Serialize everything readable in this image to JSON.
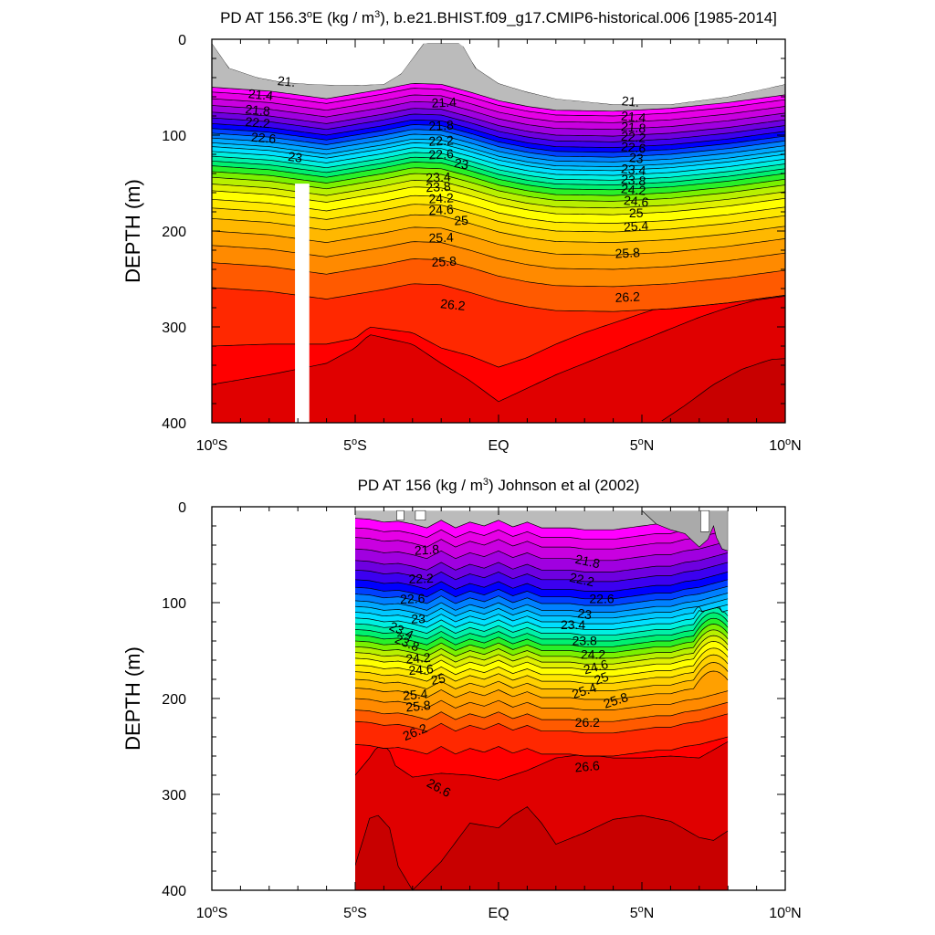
{
  "figure": "Potential density cross-sections along ~156E",
  "chart_data": [
    {
      "type": "heatmap",
      "title_prefix": "PD AT 156.3",
      "title_deg": "o",
      "title_mid": "E (kg / m",
      "title_sup": "3",
      "title_suffix": "), b.e21.BHIST.f09_g17.CMIP6-historical.006 [1985-2014]",
      "xlabel": "",
      "ylabel": "DEPTH (m)",
      "xlim": [
        -10,
        10
      ],
      "ylim": [
        400,
        0
      ],
      "x_ticks": [
        -10,
        -5,
        0,
        5,
        10
      ],
      "x_tick_labels": [
        {
          "num": "10",
          "sup": "o",
          "hemi": "S"
        },
        {
          "num": "5",
          "sup": "o",
          "hemi": "S"
        },
        {
          "num": "EQ",
          "sup": "",
          "hemi": ""
        },
        {
          "num": "5",
          "sup": "o",
          "hemi": "N"
        },
        {
          "num": "10",
          "sup": "o",
          "hemi": "N"
        }
      ],
      "y_ticks": [
        0,
        100,
        200,
        300,
        400
      ],
      "y_tick_labels": [
        "0",
        "100",
        "200",
        "300",
        "400"
      ],
      "x_domain": [
        -10,
        10
      ],
      "missing_columns": [
        [
          -7.1,
          -6.6
        ]
      ],
      "base": {
        "x": [
          -10,
          -8,
          -6,
          -4,
          -3,
          -2,
          -1,
          0,
          1,
          2,
          4,
          6,
          8,
          10
        ],
        "depth": [
          50,
          54,
          62,
          52,
          46,
          47,
          55,
          64,
          70,
          74,
          75,
          72,
          66,
          58
        ]
      },
      "contour_levels": [
        21.0,
        21.2,
        21.4,
        21.6,
        21.8,
        22.0,
        22.2,
        22.4,
        22.6,
        22.8,
        23.0,
        23.2,
        23.4,
        23.6,
        23.8,
        24.0,
        24.2,
        24.4,
        24.6,
        24.8,
        25.0,
        25.2,
        25.4,
        25.6,
        25.8,
        26.0,
        26.2,
        26.4,
        26.6,
        26.8
      ],
      "contour_depth_offsets": [
        0,
        5,
        12,
        19,
        26,
        32,
        38,
        43,
        48,
        53,
        58,
        62,
        67,
        72,
        77,
        82,
        88,
        94,
        101,
        108,
        117,
        126,
        137,
        150,
        165,
        183,
        209,
        238,
        272,
        330
      ],
      "deep_contours": [
        {
          "level": 26.4,
          "x": [
            -10,
            -8,
            -6,
            -5,
            -4.5,
            -3,
            -2,
            -1,
            0,
            1,
            2,
            3,
            4,
            5,
            6,
            7,
            8,
            9,
            10
          ],
          "depth": [
            320,
            318,
            318,
            312,
            300,
            306,
            322,
            330,
            342,
            332,
            318,
            306,
            296,
            286,
            276,
            266,
            260,
            256,
            255
          ]
        },
        {
          "level": 26.6,
          "x": [
            -10,
            -8,
            -6,
            -5,
            -4.5,
            -3,
            -2,
            -1,
            0,
            1,
            2,
            3,
            4,
            5,
            6,
            7,
            8,
            9,
            10
          ],
          "depth": [
            360,
            350,
            338,
            322,
            308,
            318,
            338,
            356,
            378,
            364,
            350,
            338,
            326,
            314,
            302,
            290,
            280,
            272,
            268
          ]
        },
        {
          "level": 26.8,
          "x": [
            5.6,
            6.5,
            7.5,
            8.5,
            9.5,
            10
          ],
          "depth": [
            400,
            382,
            360,
            344,
            334,
            333
          ]
        }
      ],
      "surface_fill": {
        "color": "#6e6e6e",
        "x": [
          -10,
          -9.4,
          -8.4,
          -7.5,
          -6.5,
          -5.5,
          -5,
          -4,
          -3.4,
          -2.6,
          -1.3,
          -0.8,
          0,
          1,
          2,
          4,
          6,
          8,
          10
        ],
        "depth": [
          4,
          30,
          40,
          45,
          47,
          48,
          48,
          47,
          36,
          4,
          4,
          30,
          46,
          55,
          62,
          68,
          68,
          60,
          47
        ]
      },
      "labels": [
        {
          "text": "21.",
          "x": -7.4,
          "d": 45,
          "rot": 6
        },
        {
          "text": "21.4",
          "x": -8.3,
          "d": 59,
          "rot": 6
        },
        {
          "text": "21.8",
          "x": -8.4,
          "d": 75,
          "rot": 5
        },
        {
          "text": "22.2",
          "x": -8.4,
          "d": 88,
          "rot": 5
        },
        {
          "text": "22.6",
          "x": -8.2,
          "d": 104,
          "rot": 5
        },
        {
          "text": "23",
          "x": -7.1,
          "d": 124,
          "rot": 8
        },
        {
          "text": "21.4",
          "x": -1.9,
          "d": 67,
          "rot": -3
        },
        {
          "text": "21.8",
          "x": -2.0,
          "d": 91,
          "rot": -3
        },
        {
          "text": "22.2",
          "x": -2.0,
          "d": 107,
          "rot": -3
        },
        {
          "text": "22.6",
          "x": -2.0,
          "d": 121,
          "rot": -3
        },
        {
          "text": "23",
          "x": -1.3,
          "d": 131,
          "rot": 10
        },
        {
          "text": "23.4",
          "x": -2.1,
          "d": 145,
          "rot": -3
        },
        {
          "text": "23.8",
          "x": -2.1,
          "d": 155,
          "rot": -3
        },
        {
          "text": "24.2",
          "x": -2.0,
          "d": 167,
          "rot": -3
        },
        {
          "text": "24.6",
          "x": -2.0,
          "d": 179,
          "rot": -3
        },
        {
          "text": "25",
          "x": -1.3,
          "d": 190,
          "rot": -3
        },
        {
          "text": "25.4",
          "x": -2.0,
          "d": 208,
          "rot": -2
        },
        {
          "text": "25.8",
          "x": -1.9,
          "d": 233,
          "rot": -3
        },
        {
          "text": "26.2",
          "x": -1.6,
          "d": 278,
          "rot": 6
        },
        {
          "text": "21.",
          "x": 4.6,
          "d": 66,
          "rot": 6
        },
        {
          "text": "21.4",
          "x": 4.7,
          "d": 82,
          "rot": 5
        },
        {
          "text": "21.8",
          "x": 4.7,
          "d": 93,
          "rot": 5
        },
        {
          "text": "22.2",
          "x": 4.7,
          "d": 103,
          "rot": 5
        },
        {
          "text": "22.6",
          "x": 4.7,
          "d": 114,
          "rot": 5
        },
        {
          "text": "23",
          "x": 4.8,
          "d": 125,
          "rot": 5
        },
        {
          "text": "23.4",
          "x": 4.7,
          "d": 137,
          "rot": 5
        },
        {
          "text": "23.8",
          "x": 4.7,
          "d": 148,
          "rot": 5
        },
        {
          "text": "24.2",
          "x": 4.7,
          "d": 158,
          "rot": 5
        },
        {
          "text": "24.6",
          "x": 4.8,
          "d": 170,
          "rot": 5
        },
        {
          "text": "25",
          "x": 4.8,
          "d": 182,
          "rot": 0
        },
        {
          "text": "25.4",
          "x": 4.8,
          "d": 196,
          "rot": -4
        },
        {
          "text": "25.8",
          "x": 4.5,
          "d": 224,
          "rot": -3
        },
        {
          "text": "26.2",
          "x": 4.5,
          "d": 270,
          "rot": -3
        }
      ]
    },
    {
      "type": "heatmap",
      "title_prefix": "PD AT 156 (kg / m",
      "title_sup": "3",
      "title_suffix": ") Johnson et al (2002)",
      "xlabel": "",
      "ylabel": "DEPTH (m)",
      "xlim": [
        -10,
        10
      ],
      "ylim": [
        400,
        0
      ],
      "x_ticks": [
        -10,
        -5,
        0,
        5,
        10
      ],
      "x_tick_labels": [
        {
          "num": "10",
          "sup": "o",
          "hemi": "S"
        },
        {
          "num": "5",
          "sup": "o",
          "hemi": "S"
        },
        {
          "num": "EQ",
          "sup": "",
          "hemi": ""
        },
        {
          "num": "5",
          "sup": "o",
          "hemi": "N"
        },
        {
          "num": "10",
          "sup": "o",
          "hemi": "N"
        }
      ],
      "y_ticks": [
        0,
        100,
        200,
        300,
        400
      ],
      "y_tick_labels": [
        "0",
        "100",
        "200",
        "300",
        "400"
      ],
      "x_domain": [
        -5,
        8
      ],
      "missing_columns": [],
      "base": {
        "x": [
          -5,
          -4.5,
          -4,
          -3.5,
          -3,
          -2.5,
          -2,
          -1.5,
          -1,
          -0.5,
          0,
          0.5,
          1,
          1.5,
          2,
          2.5,
          3,
          3.5,
          4,
          4.5,
          5,
          5.5,
          6,
          6.5,
          7,
          7.5,
          8
        ],
        "depth": [
          12,
          13,
          16,
          15,
          18,
          22,
          14,
          22,
          16,
          20,
          14,
          21,
          16,
          22,
          22,
          22,
          24,
          24,
          24,
          22,
          20,
          18,
          18,
          14,
          12,
          8,
          4
        ]
      },
      "contour_levels": [
        21.0,
        21.2,
        21.4,
        21.6,
        21.8,
        22.0,
        22.2,
        22.4,
        22.6,
        22.8,
        23.0,
        23.2,
        23.4,
        23.6,
        23.8,
        24.0,
        24.2,
        24.4,
        24.6,
        24.8,
        25.0,
        25.2,
        25.4,
        25.6,
        25.8,
        26.0,
        26.2,
        26.4,
        26.6,
        26.8
      ],
      "contour_depth_offsets": [
        0,
        10,
        20,
        32,
        44,
        54,
        64,
        72,
        79,
        86,
        92,
        98,
        104,
        110,
        116,
        122,
        128,
        134,
        140,
        146,
        153,
        160,
        168,
        177,
        188,
        200,
        212,
        236,
        262,
        322
      ],
      "deep_contours": [
        {
          "level": 26.6,
          "x": [
            -5,
            -4.5,
            -4,
            -3.6,
            -3,
            -2,
            -1,
            0,
            1,
            2,
            3,
            4,
            5,
            6,
            7,
            8
          ],
          "depth": [
            280,
            262,
            240,
            270,
            282,
            278,
            280,
            285,
            275,
            262,
            258,
            262,
            262,
            260,
            262,
            245
          ]
        },
        {
          "level": 26.8,
          "x": [
            -5,
            -4.7,
            -4.5,
            -4.2,
            -3.8,
            -3.5,
            -3,
            -2,
            -1,
            0,
            0.5,
            1,
            1.5,
            2,
            3,
            4,
            5,
            6,
            7,
            7.5,
            8
          ],
          "depth": [
            374,
            345,
            325,
            322,
            335,
            375,
            400,
            370,
            330,
            335,
            322,
            313,
            330,
            352,
            340,
            326,
            322,
            328,
            345,
            348,
            338
          ]
        }
      ],
      "surface_fill": {
        "color": "#aaaaaa",
        "x": [
          5,
          5.5,
          6,
          6.5,
          7,
          7.3,
          7.5,
          7.6,
          7.8,
          8
        ],
        "depth": [
          4,
          18,
          24,
          28,
          42,
          34,
          20,
          32,
          44,
          46
        ]
      },
      "gaps": [
        {
          "x": [
            -3.55,
            -3.3
          ],
          "depth": [
            4,
            14
          ]
        },
        {
          "x": [
            -2.9,
            -2.55
          ],
          "depth": [
            4,
            14
          ]
        },
        {
          "x": [
            7.05,
            7.35
          ],
          "depth": [
            4,
            26
          ]
        }
      ],
      "dent": {
        "x": 7.4,
        "width": 0.6,
        "depth_from": 110,
        "depth_to": 190,
        "amount": 14
      },
      "labels": [
        {
          "text": "21.8",
          "x": -2.5,
          "d": 46,
          "rot": -3
        },
        {
          "text": "22.2",
          "x": -2.7,
          "d": 76,
          "rot": -2
        },
        {
          "text": "22.6",
          "x": -3.0,
          "d": 97,
          "rot": -2
        },
        {
          "text": "23",
          "x": -2.8,
          "d": 118,
          "rot": 0
        },
        {
          "text": "23.4",
          "x": -3.4,
          "d": 130,
          "rot": 25
        },
        {
          "text": "23.8",
          "x": -3.2,
          "d": 143,
          "rot": 22
        },
        {
          "text": "24.2",
          "x": -2.8,
          "d": 159,
          "rot": -4
        },
        {
          "text": "24.6",
          "x": -2.7,
          "d": 171,
          "rot": -4
        },
        {
          "text": "25",
          "x": -2.1,
          "d": 181,
          "rot": -10
        },
        {
          "text": "25.4",
          "x": -2.9,
          "d": 197,
          "rot": -5
        },
        {
          "text": "25.8",
          "x": -2.8,
          "d": 209,
          "rot": -5
        },
        {
          "text": "26.2",
          "x": -2.9,
          "d": 236,
          "rot": -22
        },
        {
          "text": "26.6",
          "x": -2.1,
          "d": 294,
          "rot": 28
        },
        {
          "text": "21.8",
          "x": 3.1,
          "d": 58,
          "rot": 12
        },
        {
          "text": "22.2",
          "x": 2.9,
          "d": 77,
          "rot": 12
        },
        {
          "text": "22.6",
          "x": 3.6,
          "d": 97,
          "rot": 0
        },
        {
          "text": "23",
          "x": 3.0,
          "d": 113,
          "rot": 8
        },
        {
          "text": "23.4",
          "x": 2.6,
          "d": 124,
          "rot": 0
        },
        {
          "text": "23.8",
          "x": 3.0,
          "d": 141,
          "rot": 0
        },
        {
          "text": "24.2",
          "x": 3.3,
          "d": 155,
          "rot": 0
        },
        {
          "text": "24.6",
          "x": 3.4,
          "d": 168,
          "rot": -15
        },
        {
          "text": "25",
          "x": 3.6,
          "d": 180,
          "rot": -20
        },
        {
          "text": "25.4",
          "x": 3.0,
          "d": 193,
          "rot": -18
        },
        {
          "text": "25.8",
          "x": 4.1,
          "d": 203,
          "rot": -18
        },
        {
          "text": "26.2",
          "x": 3.1,
          "d": 226,
          "rot": 0
        },
        {
          "text": "26.6",
          "x": 3.1,
          "d": 272,
          "rot": -5
        }
      ]
    }
  ],
  "colors": {
    "fills": [
      "#bbbbbb",
      "#ff00ff",
      "#e600e6",
      "#c900e0",
      "#a000e0",
      "#6e00e0",
      "#3c00f0",
      "#0000ff",
      "#0040ff",
      "#0080ff",
      "#00a8ff",
      "#00c8ff",
      "#00e0ff",
      "#00f0e0",
      "#00f0a8",
      "#00f070",
      "#28f028",
      "#7af000",
      "#b8f000",
      "#e0f000",
      "#ffff00",
      "#ffe800",
      "#ffd000",
      "#ffb800",
      "#ffa000",
      "#ff8a00",
      "#ff5a00",
      "#ff2800",
      "#ff0000",
      "#e00000",
      "#c80000"
    ],
    "missing": "#ffffff",
    "contour_line": "#000000"
  }
}
